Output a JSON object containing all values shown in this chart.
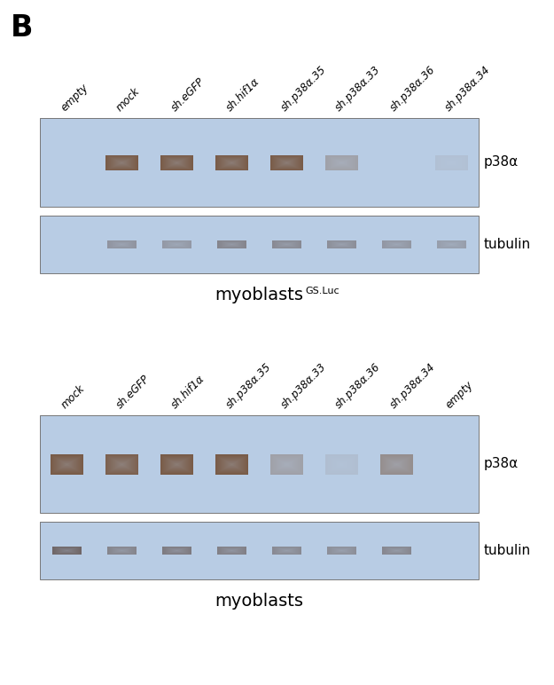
{
  "bg_color": "#ffffff",
  "blot_bg": [
    184,
    204,
    228
  ],
  "band_color_p38": [
    120,
    90,
    70
  ],
  "band_color_tub": [
    110,
    100,
    100
  ],
  "panel1_labels": [
    "empty",
    "mock",
    "sh.eGFP",
    "sh.hif1α",
    "sh.p38α.35",
    "sh.p38α.33",
    "sh.p38α.36",
    "sh.p38α.34"
  ],
  "panel2_labels": [
    "mock",
    "sh.eGFP",
    "sh.hif1α",
    "sh.p38α.35",
    "sh.p38α.33",
    "sh.p38α.36",
    "sh.p38α.34",
    "empty"
  ],
  "panel1_p38_intensities": [
    0.0,
    1.0,
    1.0,
    1.0,
    1.0,
    0.38,
    0.0,
    0.1
  ],
  "panel1_tubulin_intensities": [
    0.0,
    0.55,
    0.5,
    0.7,
    0.65,
    0.6,
    0.52,
    0.45
  ],
  "panel2_p38_intensities": [
    1.0,
    0.95,
    1.0,
    1.0,
    0.38,
    0.12,
    0.55,
    0.0
  ],
  "panel2_tubulin_intensities": [
    1.0,
    0.7,
    0.8,
    0.75,
    0.65,
    0.6,
    0.68,
    0.0
  ],
  "label_fontsize": 8.5,
  "annotation_fontsize": 11,
  "title_fontsize": 14
}
